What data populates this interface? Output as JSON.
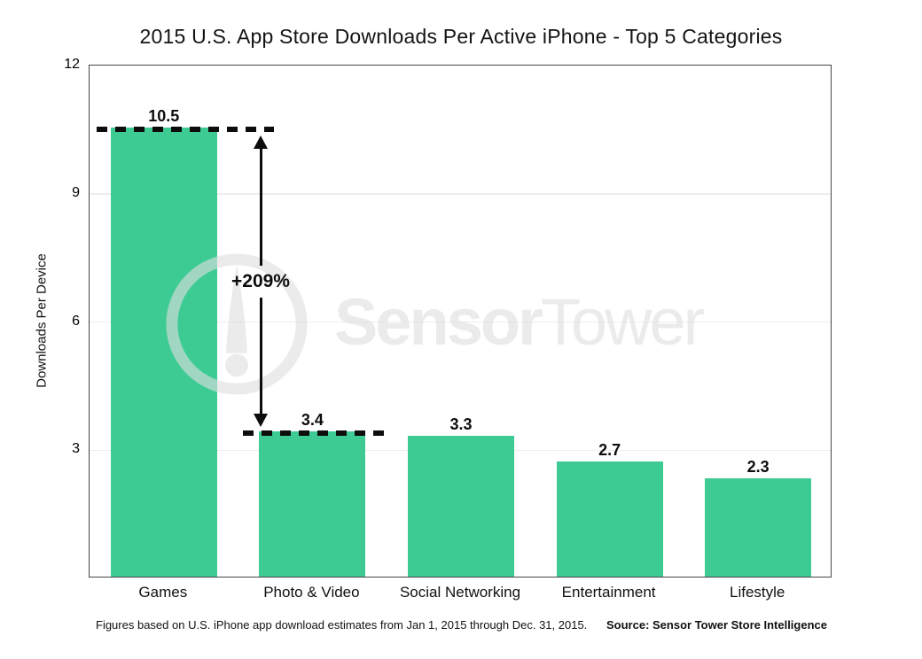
{
  "title": "2015 U.S. App Store Downloads Per Active iPhone - Top 5 Categories",
  "watermark": {
    "brand_bold": "Sensor",
    "brand_light": "Tower",
    "logo": "sensor-tower-logo"
  },
  "footer": {
    "note": "Figures based on U.S. iPhone app download estimates from Jan 1, 2015 through Dec. 31, 2015.",
    "source": "Source: Sensor Tower Store Intelligence"
  },
  "chart_data": {
    "type": "bar",
    "title": "2015 U.S. App Store Downloads Per Active iPhone - Top 5 Categories",
    "xlabel": "",
    "ylabel": "Downloads Per Device",
    "categories": [
      "Games",
      "Photo & Video",
      "Social Networking",
      "Entertainment",
      "Lifestyle"
    ],
    "values": [
      10.5,
      3.4,
      3.3,
      2.7,
      2.3
    ],
    "value_labels": [
      "10.5",
      "3.4",
      "3.3",
      "2.7",
      "2.3"
    ],
    "ylim": [
      0,
      12
    ],
    "yticks": [
      3,
      6,
      9,
      12
    ],
    "gridlines": [
      3,
      6,
      9
    ],
    "grid": "horizontal",
    "legend": "none",
    "bar_color": "#3ecb93",
    "annotation": {
      "label": "+209%",
      "from_category": "Photo & Video",
      "from_value": 3.4,
      "to_category": "Games",
      "to_value": 10.5,
      "style": "dashed reference lines with double-headed arrow"
    }
  }
}
